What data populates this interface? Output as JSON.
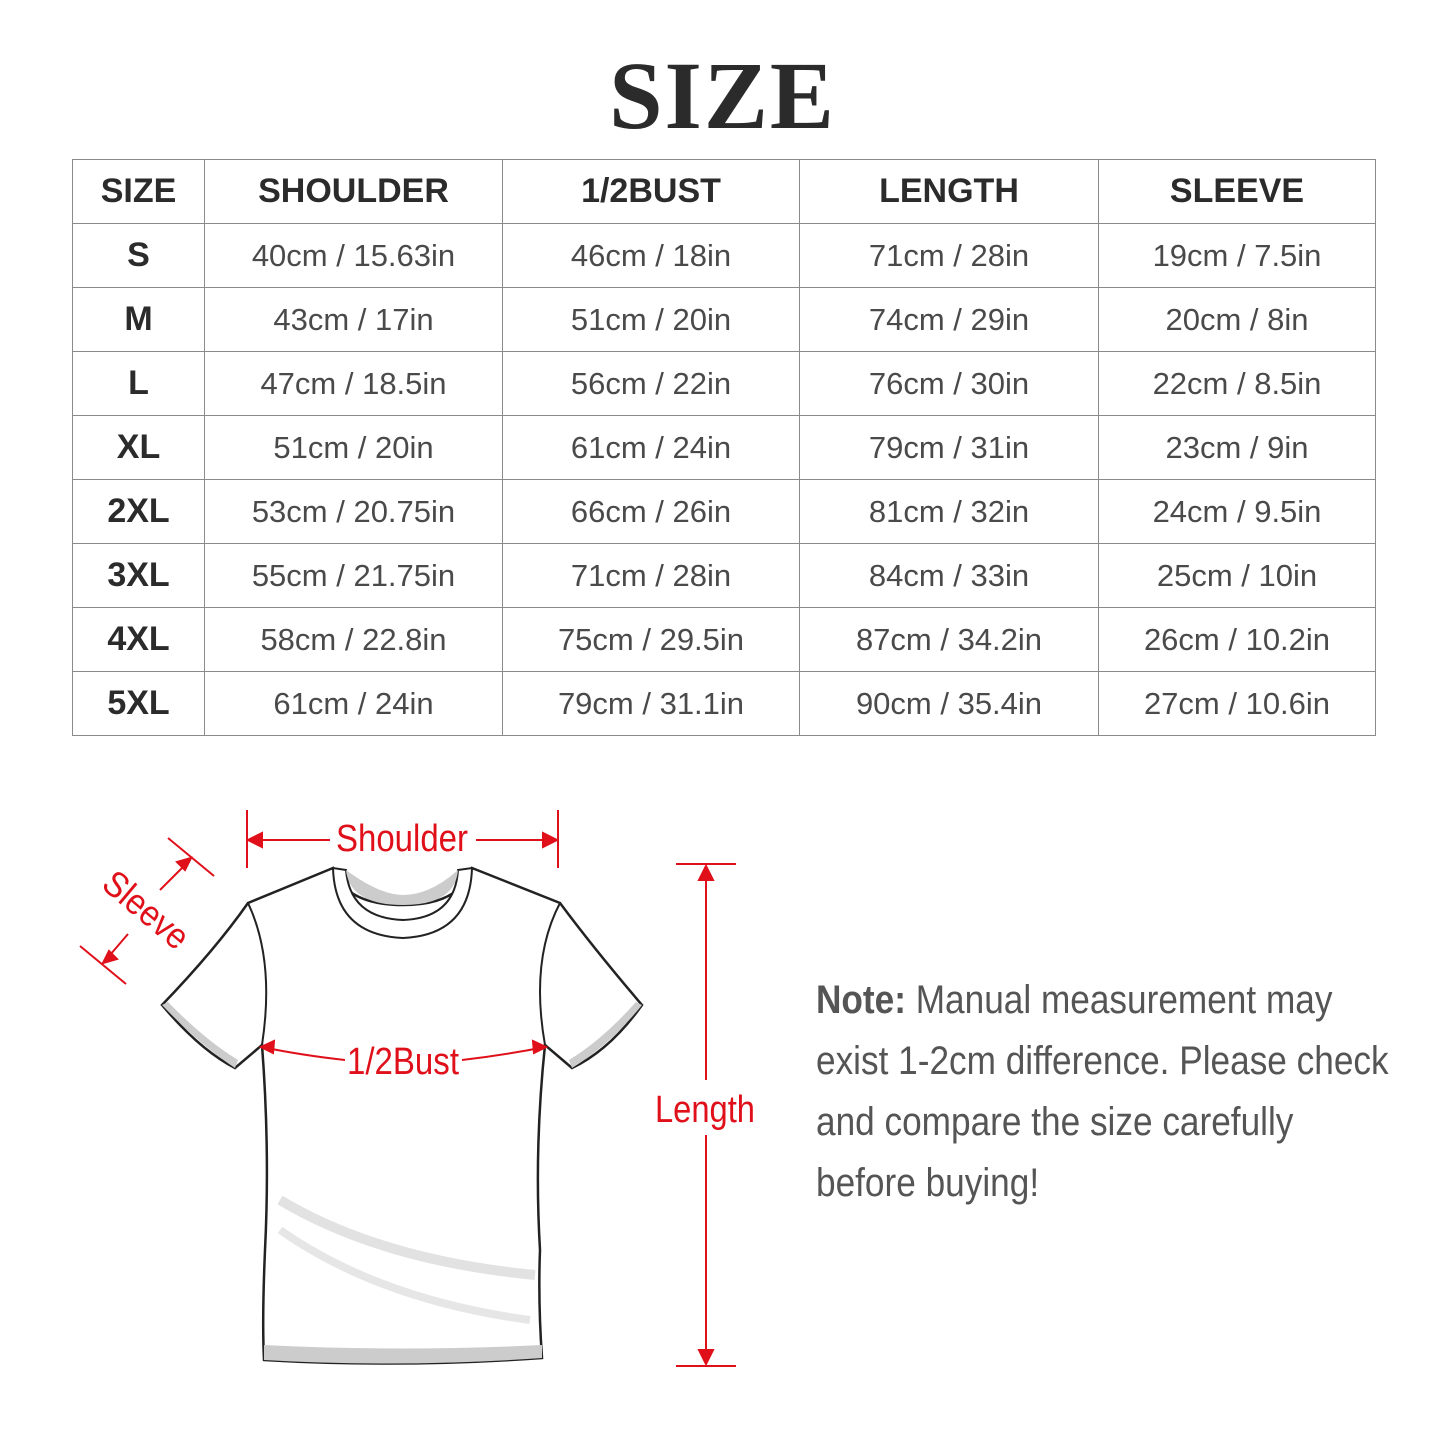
{
  "title": "SIZE",
  "table": {
    "headers": [
      "SIZE",
      "SHOULDER",
      "1/2BUST",
      "LENGTH",
      "SLEEVE"
    ],
    "rows": [
      [
        "S",
        "40cm / 15.63in",
        "46cm / 18in",
        "71cm / 28in",
        "19cm / 7.5in"
      ],
      [
        "M",
        "43cm / 17in",
        "51cm / 20in",
        "74cm / 29in",
        "20cm / 8in"
      ],
      [
        "L",
        "47cm / 18.5in",
        "56cm / 22in",
        "76cm / 30in",
        "22cm / 8.5in"
      ],
      [
        "XL",
        "51cm / 20in",
        "61cm / 24in",
        "79cm / 31in",
        "23cm / 9in"
      ],
      [
        "2XL",
        "53cm / 20.75in",
        "66cm / 26in",
        "81cm / 32in",
        "24cm / 9.5in"
      ],
      [
        "3XL",
        "55cm / 21.75in",
        "71cm / 28in",
        "84cm / 33in",
        "25cm / 10in"
      ],
      [
        "4XL",
        "58cm / 22.8in",
        "75cm / 29.5in",
        "87cm / 34.2in",
        "26cm / 10.2in"
      ],
      [
        "5XL",
        "61cm / 24in",
        "79cm / 31.1in",
        "90cm / 35.4in",
        "27cm / 10.6in"
      ]
    ]
  },
  "diagram": {
    "shoulder": "Shoulder",
    "sleeve": "Sleeve",
    "bust": "1/2Bust",
    "length": "Length",
    "accent": "#e0101a"
  },
  "note": {
    "label": "Note:",
    "text": " Manual measurement may exist 1-2cm difference. Please check and compare the size carefully before buying!"
  }
}
